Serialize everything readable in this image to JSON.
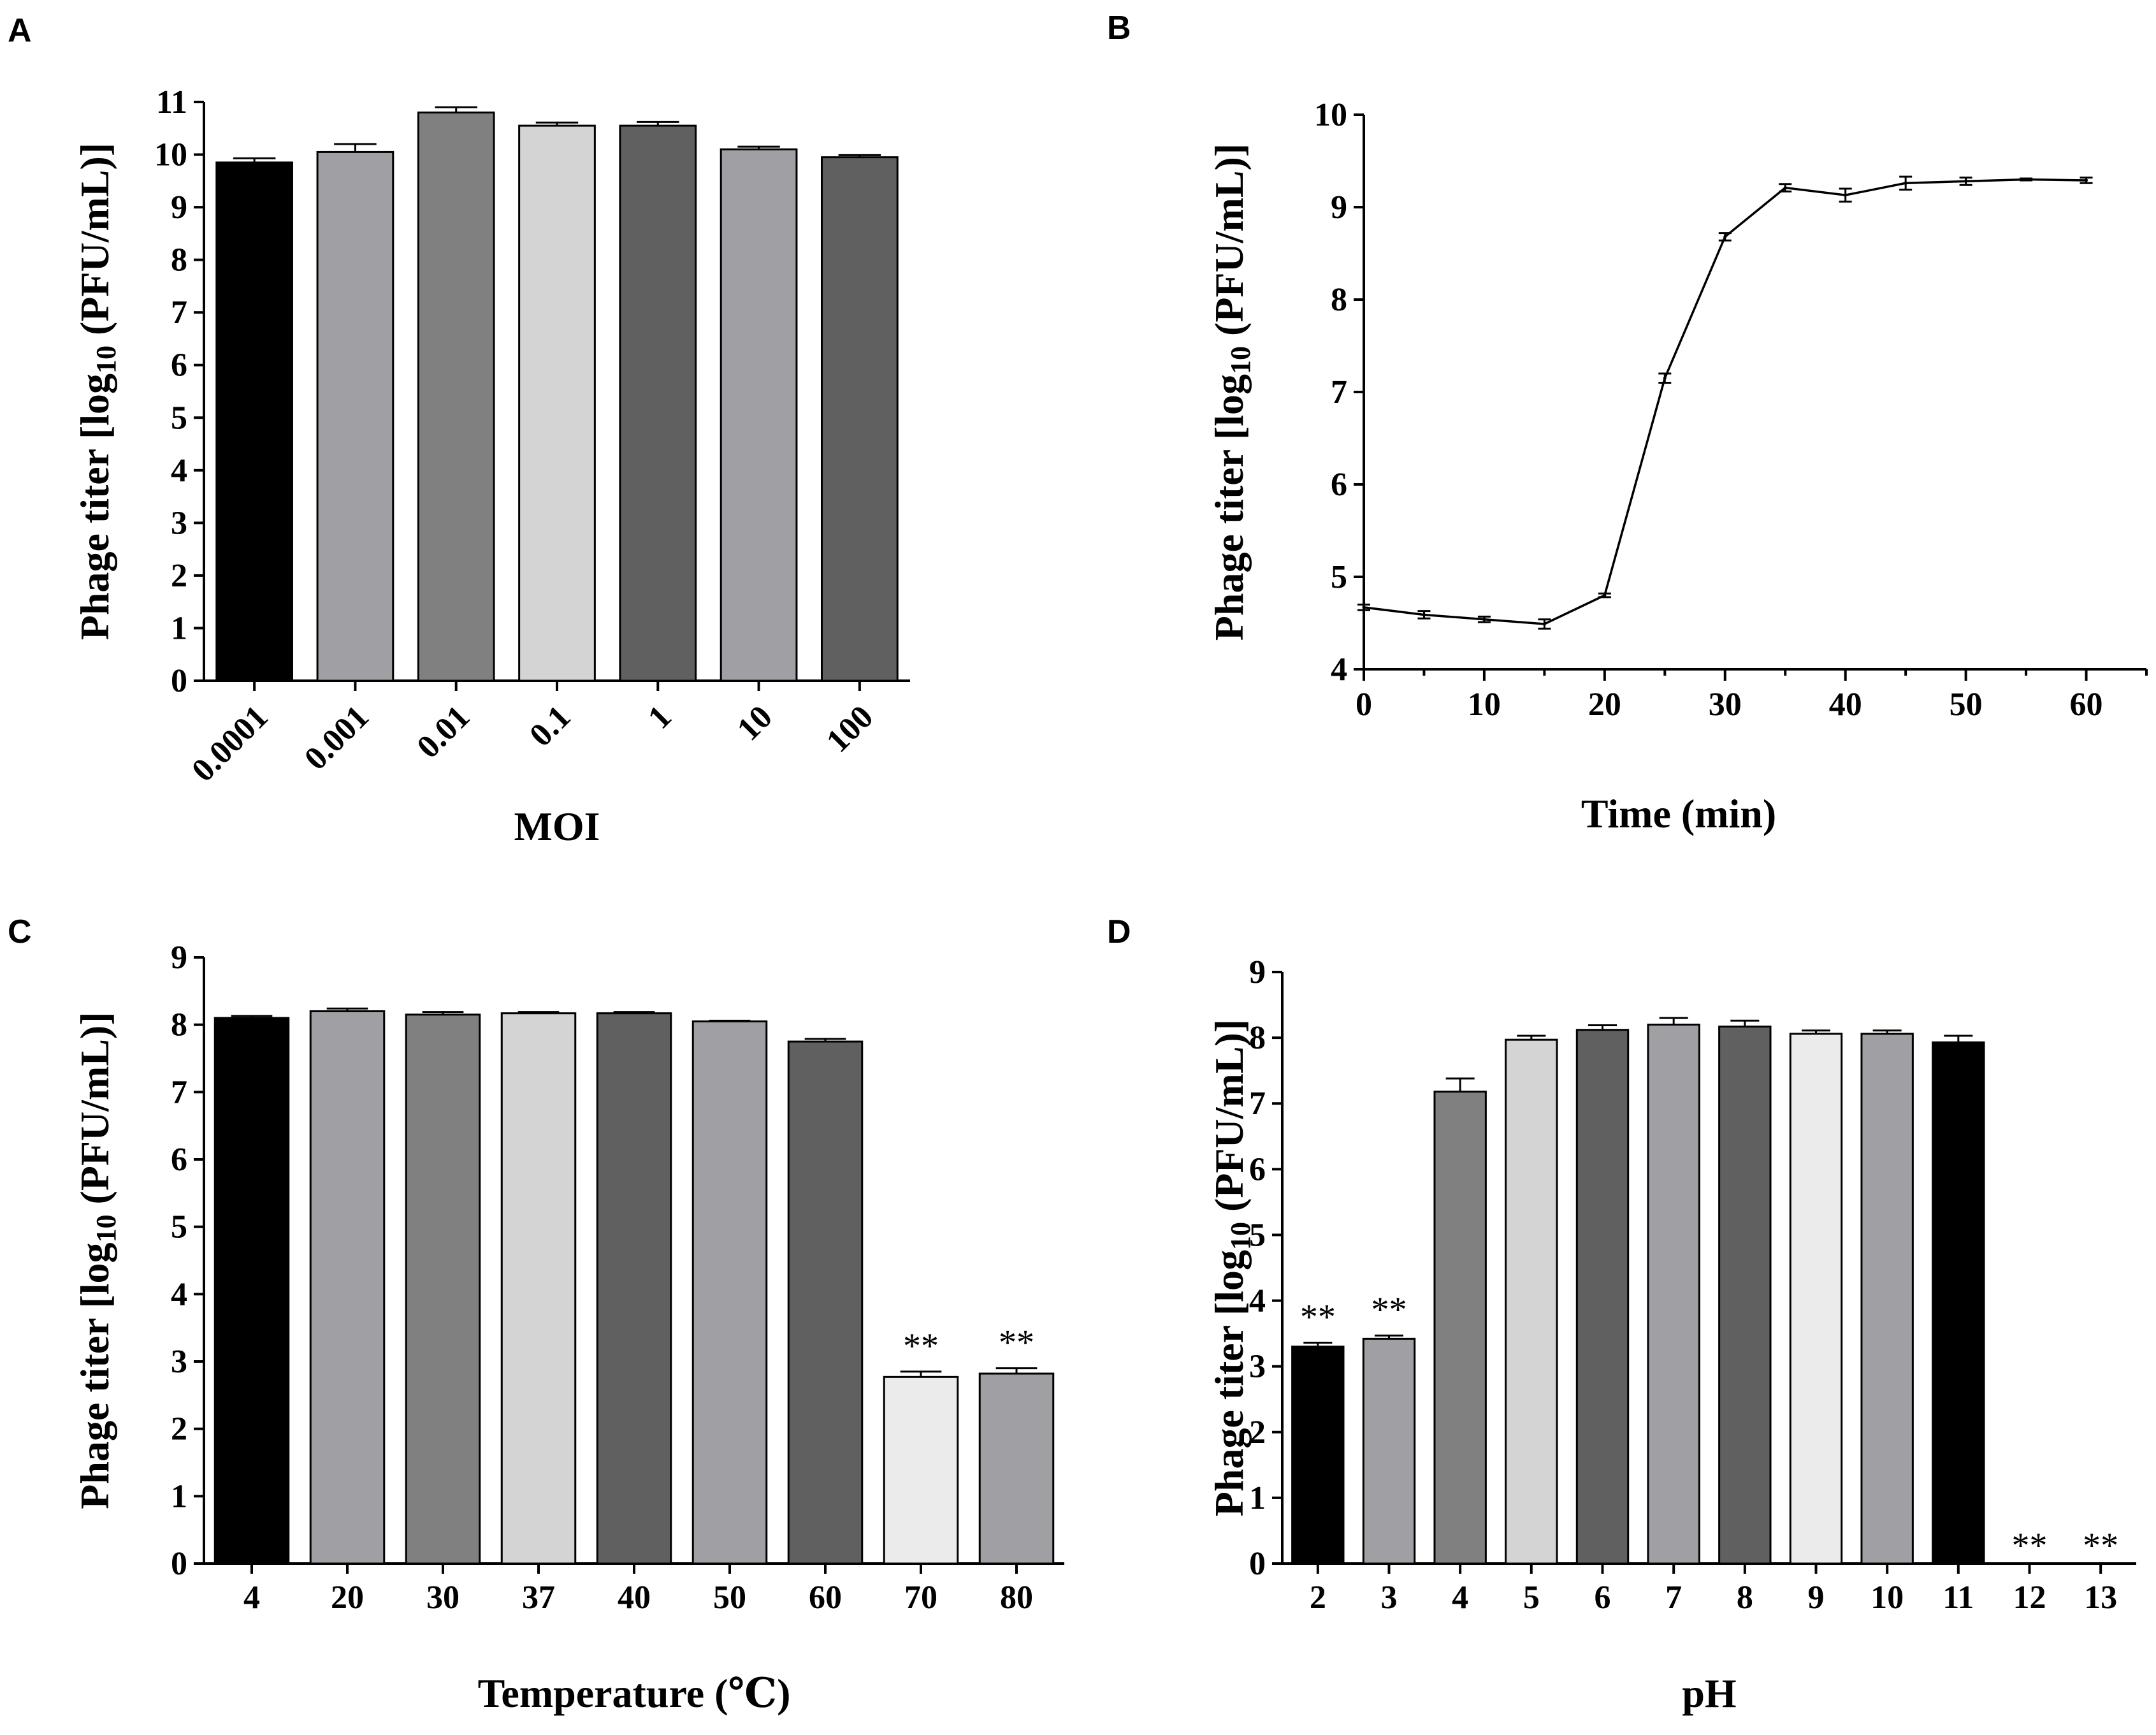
{
  "chart_data": [
    {
      "panel": "A",
      "type": "bar",
      "title": "",
      "xlabel": "MOI",
      "ylabel_main": "Phage titer [log",
      "ylabel_sub": "10",
      "ylabel_tail": " (PFU/mL)]",
      "ylim": [
        0,
        11
      ],
      "yticks": [
        0,
        1,
        2,
        3,
        4,
        5,
        6,
        7,
        8,
        9,
        10,
        11
      ],
      "categories": [
        "0.0001",
        "0.001",
        "0.01",
        "0.1",
        "1",
        "10",
        "100"
      ],
      "values": [
        9.85,
        10.05,
        10.8,
        10.55,
        10.55,
        10.1,
        9.95
      ],
      "errors": [
        0.08,
        0.15,
        0.1,
        0.06,
        0.07,
        0.05,
        0.04
      ],
      "colors": [
        "#000000",
        "#a0a0a4",
        "#808080",
        "#d4d4d4",
        "#606060",
        "#a0a0a4",
        "#606060"
      ],
      "annotations": [
        "",
        "",
        "",
        "",
        "",
        "",
        ""
      ]
    },
    {
      "panel": "B",
      "type": "line",
      "title": "",
      "xlabel": "Time (min)",
      "ylabel_main": "Phage titer [log",
      "ylabel_sub": "10",
      "ylabel_tail": " (PFU/mL)]",
      "xlim": [
        0,
        65
      ],
      "xticks": [
        0,
        10,
        20,
        30,
        40,
        50,
        60
      ],
      "ylim": [
        4,
        10
      ],
      "yticks": [
        4,
        5,
        6,
        7,
        8,
        9,
        10
      ],
      "x": [
        0,
        5,
        10,
        15,
        20,
        25,
        30,
        35,
        40,
        45,
        50,
        55,
        60
      ],
      "y": [
        4.67,
        4.59,
        4.54,
        4.49,
        4.8,
        7.15,
        8.68,
        9.21,
        9.13,
        9.26,
        9.28,
        9.3,
        9.29
      ],
      "errors": [
        0.03,
        0.04,
        0.03,
        0.05,
        0.02,
        0.05,
        0.04,
        0.04,
        0.07,
        0.07,
        0.04,
        0.01,
        0.03
      ]
    },
    {
      "panel": "C",
      "type": "bar",
      "title": "",
      "xlabel": "Temperature (℃)",
      "ylabel_main": "Phage titer [log",
      "ylabel_sub": "10",
      "ylabel_tail": " (PFU/mL)]",
      "ylim": [
        0,
        9
      ],
      "yticks": [
        0,
        1,
        2,
        3,
        4,
        5,
        6,
        7,
        8,
        9
      ],
      "categories": [
        "4",
        "20",
        "30",
        "37",
        "40",
        "50",
        "60",
        "70",
        "80"
      ],
      "values": [
        8.1,
        8.2,
        8.15,
        8.17,
        8.17,
        8.05,
        7.75,
        2.77,
        2.82
      ],
      "errors": [
        0.03,
        0.04,
        0.04,
        0.02,
        0.02,
        0.01,
        0.04,
        0.08,
        0.08
      ],
      "colors": [
        "#000000",
        "#a0a0a4",
        "#808080",
        "#d4d4d4",
        "#606060",
        "#a0a0a4",
        "#606060",
        "#ebebeb",
        "#a0a0a4"
      ],
      "annotations": [
        "",
        "",
        "",
        "",
        "",
        "",
        "",
        "**",
        "**"
      ]
    },
    {
      "panel": "D",
      "type": "bar",
      "title": "",
      "xlabel": "pH",
      "ylabel_main": "Phage titer [log",
      "ylabel_sub": "10",
      "ylabel_tail": " (PFU/mL)]",
      "ylim": [
        0,
        9
      ],
      "yticks": [
        0,
        1,
        2,
        3,
        4,
        5,
        6,
        7,
        8,
        9
      ],
      "categories": [
        "2",
        "3",
        "4",
        "5",
        "6",
        "7",
        "8",
        "9",
        "10",
        "11",
        "12",
        "13"
      ],
      "values": [
        3.3,
        3.42,
        7.18,
        7.97,
        8.12,
        8.2,
        8.17,
        8.06,
        8.06,
        7.93,
        0,
        0
      ],
      "errors": [
        0.06,
        0.05,
        0.2,
        0.06,
        0.07,
        0.1,
        0.09,
        0.05,
        0.05,
        0.1,
        0,
        0
      ],
      "colors": [
        "#000000",
        "#a0a0a4",
        "#808080",
        "#d4d4d4",
        "#606060",
        "#a0a0a4",
        "#606060",
        "#ebebeb",
        "#a0a0a4",
        "#000000",
        "#ffffff",
        "#ffffff"
      ],
      "annotations": [
        "**",
        "**",
        "",
        "",
        "",
        "",
        "",
        "",
        "",
        "",
        "**",
        "**"
      ]
    }
  ]
}
